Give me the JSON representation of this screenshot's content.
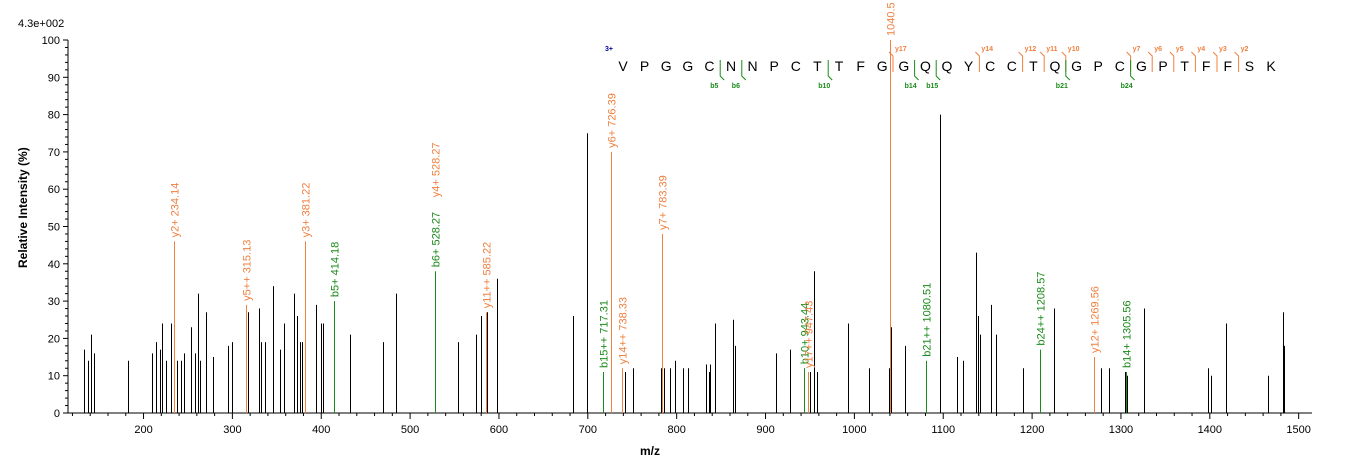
{
  "chart_data": {
    "type": "bar",
    "max_label": "4.3e+002",
    "xlabel": "m/z",
    "ylabel": "Relative   Intensity (%)",
    "xlim": [
      115,
      1515
    ],
    "ylim": [
      0,
      100
    ],
    "xticks": [
      200,
      300,
      400,
      500,
      600,
      700,
      800,
      900,
      1000,
      1100,
      1200,
      1300,
      1400,
      1500
    ],
    "yticks": [
      0,
      10,
      20,
      30,
      40,
      50,
      60,
      70,
      80,
      90,
      100
    ],
    "colors": {
      "unassigned": "#000000",
      "y_ion": "#f08040",
      "b_ion": "#1a8a1a",
      "charge": "#00009c"
    },
    "peaks": [
      {
        "x": 133,
        "y": 17
      },
      {
        "x": 138,
        "y": 14
      },
      {
        "x": 141,
        "y": 21
      },
      {
        "x": 144,
        "y": 16
      },
      {
        "x": 182,
        "y": 14
      },
      {
        "x": 209,
        "y": 16
      },
      {
        "x": 214,
        "y": 19
      },
      {
        "x": 218,
        "y": 17
      },
      {
        "x": 221,
        "y": 24
      },
      {
        "x": 225,
        "y": 14
      },
      {
        "x": 231,
        "y": 24
      },
      {
        "x": 238,
        "y": 14
      },
      {
        "x": 242,
        "y": 14
      },
      {
        "x": 246,
        "y": 16
      },
      {
        "x": 253,
        "y": 23
      },
      {
        "x": 258,
        "y": 16
      },
      {
        "x": 261,
        "y": 32
      },
      {
        "x": 264,
        "y": 14
      },
      {
        "x": 270,
        "y": 27
      },
      {
        "x": 278,
        "y": 15
      },
      {
        "x": 295,
        "y": 18
      },
      {
        "x": 300,
        "y": 19
      },
      {
        "x": 315,
        "y": 28
      },
      {
        "x": 318,
        "y": 27
      },
      {
        "x": 330,
        "y": 28
      },
      {
        "x": 332,
        "y": 19
      },
      {
        "x": 337,
        "y": 19
      },
      {
        "x": 346,
        "y": 34
      },
      {
        "x": 354,
        "y": 17
      },
      {
        "x": 358,
        "y": 24
      },
      {
        "x": 369,
        "y": 32
      },
      {
        "x": 373,
        "y": 26
      },
      {
        "x": 376,
        "y": 19
      },
      {
        "x": 378,
        "y": 19
      },
      {
        "x": 394,
        "y": 29
      },
      {
        "x": 400,
        "y": 24
      },
      {
        "x": 402,
        "y": 24
      },
      {
        "x": 432,
        "y": 21
      },
      {
        "x": 470,
        "y": 19
      },
      {
        "x": 484,
        "y": 32
      },
      {
        "x": 554,
        "y": 19
      },
      {
        "x": 574,
        "y": 21
      },
      {
        "x": 580,
        "y": 26
      },
      {
        "x": 586,
        "y": 27
      },
      {
        "x": 598,
        "y": 36
      },
      {
        "x": 683,
        "y": 26
      },
      {
        "x": 699,
        "y": 75
      },
      {
        "x": 742,
        "y": 11
      },
      {
        "x": 751,
        "y": 12
      },
      {
        "x": 782,
        "y": 12
      },
      {
        "x": 786,
        "y": 12
      },
      {
        "x": 793,
        "y": 12
      },
      {
        "x": 798,
        "y": 14
      },
      {
        "x": 807,
        "y": 12
      },
      {
        "x": 813,
        "y": 12
      },
      {
        "x": 833,
        "y": 13
      },
      {
        "x": 836,
        "y": 11
      },
      {
        "x": 838,
        "y": 13
      },
      {
        "x": 843,
        "y": 24
      },
      {
        "x": 863,
        "y": 25
      },
      {
        "x": 866,
        "y": 18
      },
      {
        "x": 912,
        "y": 16
      },
      {
        "x": 928,
        "y": 17
      },
      {
        "x": 950,
        "y": 11
      },
      {
        "x": 954,
        "y": 38
      },
      {
        "x": 958,
        "y": 11
      },
      {
        "x": 993,
        "y": 24
      },
      {
        "x": 1016,
        "y": 12
      },
      {
        "x": 1039,
        "y": 12
      },
      {
        "x": 1041,
        "y": 23
      },
      {
        "x": 1057,
        "y": 18
      },
      {
        "x": 1096,
        "y": 80
      },
      {
        "x": 1115,
        "y": 15
      },
      {
        "x": 1122,
        "y": 14
      },
      {
        "x": 1137,
        "y": 43
      },
      {
        "x": 1139,
        "y": 26
      },
      {
        "x": 1141,
        "y": 21
      },
      {
        "x": 1154,
        "y": 29
      },
      {
        "x": 1159,
        "y": 21
      },
      {
        "x": 1190,
        "y": 12
      },
      {
        "x": 1225,
        "y": 28
      },
      {
        "x": 1278,
        "y": 12
      },
      {
        "x": 1286,
        "y": 12
      },
      {
        "x": 1305,
        "y": 11
      },
      {
        "x": 1307,
        "y": 10
      },
      {
        "x": 1326,
        "y": 28
      },
      {
        "x": 1398,
        "y": 12
      },
      {
        "x": 1401,
        "y": 10
      },
      {
        "x": 1418,
        "y": 24
      },
      {
        "x": 1466,
        "y": 10
      },
      {
        "x": 1482,
        "y": 27
      },
      {
        "x": 1484,
        "y": 18
      }
    ],
    "annotated_peaks": [
      {
        "x": 234.14,
        "y": 46,
        "label": "y2+ 234.14",
        "ion": "y"
      },
      {
        "x": 315.13,
        "y": 29,
        "label": "y5++ 315.13",
        "ion": "y"
      },
      {
        "x": 381.22,
        "y": 46,
        "label": "y3+ 381.22",
        "ion": "y"
      },
      {
        "x": 414.18,
        "y": 30,
        "label": "b5+ 414.18",
        "ion": "b"
      },
      {
        "x": 528.27,
        "y": 38,
        "label": "b6+ 528.27",
        "ion": "b",
        "label2": "y4+ 528.27"
      },
      {
        "x": 585.22,
        "y": 27,
        "label": "y11++ 585.22",
        "ion": "y"
      },
      {
        "x": 717.31,
        "y": 11,
        "label": "b15++ 717.31",
        "ion": "b"
      },
      {
        "x": 726.39,
        "y": 70,
        "label": "y6+ 726.39",
        "ion": "y"
      },
      {
        "x": 738.33,
        "y": 12,
        "label": "y14++ 738.33",
        "ion": "y"
      },
      {
        "x": 783.39,
        "y": 48,
        "label": "y7+ 783.39",
        "ion": "y"
      },
      {
        "x": 943.44,
        "y": 12,
        "label": "b10+ 943.44",
        "ion": "b"
      },
      {
        "x": 947.43,
        "y": 11,
        "label": "y17++ 947.43",
        "ion": "y"
      },
      {
        "x": 1040.5,
        "y": 100,
        "label": "1040.5",
        "ion": "y"
      },
      {
        "x": 1080.51,
        "y": 14,
        "label": "b21++ 1080.51",
        "ion": "b"
      },
      {
        "x": 1208.57,
        "y": 17,
        "label": "b24++ 1208.57",
        "ion": "b"
      },
      {
        "x": 1269.56,
        "y": 15,
        "label": "y12+ 1269.56",
        "ion": "y"
      },
      {
        "x": 1305.56,
        "y": 11,
        "label": "b14+ 1305.56",
        "ion": "b"
      }
    ],
    "sequence": {
      "charge": "3+",
      "residues": [
        "V",
        "P",
        "G",
        "G",
        "C",
        "N",
        "N",
        "P",
        "C",
        "T",
        "T",
        "F",
        "G",
        "G",
        "Q",
        "Q",
        "Y",
        "C",
        "C",
        "T",
        "Q",
        "G",
        "P",
        "C",
        "G",
        "P",
        "T",
        "F",
        "F",
        "S",
        "K"
      ],
      "y_ions": [
        {
          "after": 12,
          "label": "y17"
        },
        {
          "after": 16,
          "label": "y14"
        },
        {
          "after": 18,
          "label": "y12"
        },
        {
          "after": 19,
          "label": "y11"
        },
        {
          "after": 20,
          "label": "y10"
        },
        {
          "after": 23,
          "label": "y7"
        },
        {
          "after": 24,
          "label": "y6"
        },
        {
          "after": 25,
          "label": "y5"
        },
        {
          "after": 26,
          "label": "y4"
        },
        {
          "after": 27,
          "label": "y3"
        },
        {
          "after": 28,
          "label": "y2"
        }
      ],
      "b_ions": [
        {
          "after": 4,
          "label": "b5"
        },
        {
          "after": 5,
          "label": "b6"
        },
        {
          "after": 9,
          "label": "b10"
        },
        {
          "after": 13,
          "label": "b14"
        },
        {
          "after": 14,
          "label": "b15"
        },
        {
          "after": 20,
          "label": "b21"
        },
        {
          "after": 23,
          "label": "b24"
        }
      ]
    }
  }
}
